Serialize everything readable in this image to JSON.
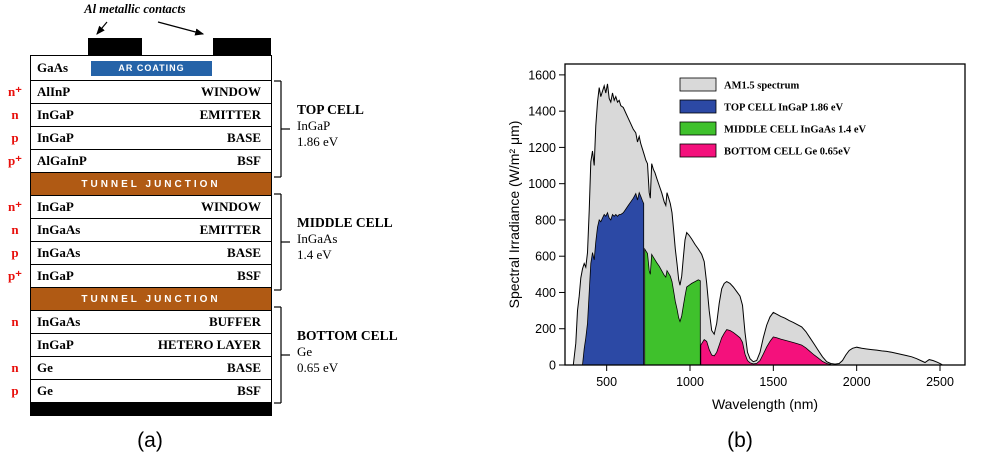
{
  "figure": {
    "caption_a": "(a)",
    "caption_b": "(b)"
  },
  "diagram": {
    "contacts_label": "Al metallic contacts",
    "ar_coating_label": "AR COATING",
    "tunnel_junction_label": "TUNNEL JUNCTION",
    "rows": [
      {
        "material": "GaAs",
        "role": "",
        "doping": ""
      },
      {
        "material": "AlInP",
        "role": "WINDOW",
        "doping": "n⁺"
      },
      {
        "material": "InGaP",
        "role": "EMITTER",
        "doping": "n"
      },
      {
        "material": "InGaP",
        "role": "BASE",
        "doping": "p"
      },
      {
        "material": "AlGaInP",
        "role": "BSF",
        "doping": "p⁺"
      },
      {
        "type": "tunnel"
      },
      {
        "material": "InGaP",
        "role": "WINDOW",
        "doping": "n⁺"
      },
      {
        "material": "InGaAs",
        "role": "EMITTER",
        "doping": "n"
      },
      {
        "material": "InGaAs",
        "role": "BASE",
        "doping": "p"
      },
      {
        "material": "InGaP",
        "role": "BSF",
        "doping": "p⁺"
      },
      {
        "type": "tunnel"
      },
      {
        "material": "InGaAs",
        "role": "BUFFER",
        "doping": "n"
      },
      {
        "material": "InGaP",
        "role": "HETERO LAYER",
        "doping": ""
      },
      {
        "material": "Ge",
        "role": "BASE",
        "doping": "n"
      },
      {
        "material": "Ge",
        "role": "BSF",
        "doping": "p"
      }
    ],
    "cells": [
      {
        "name": "TOP CELL",
        "material": "InGaP",
        "bandgap": "1.86 eV"
      },
      {
        "name": "MIDDLE CELL",
        "material": "InGaAs",
        "bandgap": "1.4 eV"
      },
      {
        "name": "BOTTOM CELL",
        "material": "Ge",
        "bandgap": "0.65 eV"
      }
    ],
    "colors": {
      "tunnel": "#b05a14",
      "ar_coating": "#2563a8",
      "contact": "#000000",
      "doping_text": "#e8100c"
    }
  },
  "chart_data": {
    "type": "area",
    "title": "",
    "xlabel": "Wavelength (nm)",
    "ylabel": "Spectral Irradiance (W/m² μm)",
    "xlim": [
      250,
      2650
    ],
    "ylim": [
      0,
      1660
    ],
    "xticks": [
      500,
      1000,
      1500,
      2000,
      2500
    ],
    "yticks": [
      0,
      200,
      400,
      600,
      800,
      1000,
      1200,
      1400,
      1600
    ],
    "grid": false,
    "legend_position": "top-inside",
    "series": [
      {
        "name": "AM1.5 spectrum",
        "color": "#d9d9d9",
        "points": [
          [
            300,
            0
          ],
          [
            315,
            120
          ],
          [
            325,
            300
          ],
          [
            335,
            380
          ],
          [
            345,
            480
          ],
          [
            355,
            530
          ],
          [
            365,
            560
          ],
          [
            375,
            540
          ],
          [
            385,
            620
          ],
          [
            395,
            850
          ],
          [
            405,
            1120
          ],
          [
            415,
            1180
          ],
          [
            425,
            1100
          ],
          [
            435,
            1320
          ],
          [
            445,
            1450
          ],
          [
            455,
            1530
          ],
          [
            465,
            1480
          ],
          [
            475,
            1510
          ],
          [
            485,
            1540
          ],
          [
            495,
            1500
          ],
          [
            505,
            1550
          ],
          [
            515,
            1470
          ],
          [
            525,
            1450
          ],
          [
            535,
            1500
          ],
          [
            545,
            1460
          ],
          [
            555,
            1480
          ],
          [
            565,
            1450
          ],
          [
            575,
            1460
          ],
          [
            585,
            1430
          ],
          [
            600,
            1420
          ],
          [
            615,
            1390
          ],
          [
            630,
            1360
          ],
          [
            645,
            1330
          ],
          [
            660,
            1300
          ],
          [
            675,
            1280
          ],
          [
            685,
            1230
          ],
          [
            695,
            1260
          ],
          [
            705,
            1220
          ],
          [
            715,
            1190
          ],
          [
            725,
            1160
          ],
          [
            735,
            1130
          ],
          [
            745,
            1110
          ],
          [
            755,
            950
          ],
          [
            762,
            920
          ],
          [
            770,
            1110
          ],
          [
            780,
            1080
          ],
          [
            790,
            1060
          ],
          [
            800,
            1030
          ],
          [
            815,
            990
          ],
          [
            830,
            950
          ],
          [
            845,
            900
          ],
          [
            855,
            880
          ],
          [
            862,
            950
          ],
          [
            872,
            920
          ],
          [
            882,
            890
          ],
          [
            892,
            840
          ],
          [
            902,
            740
          ],
          [
            912,
            640
          ],
          [
            922,
            560
          ],
          [
            932,
            470
          ],
          [
            940,
            440
          ],
          [
            950,
            490
          ],
          [
            960,
            590
          ],
          [
            970,
            690
          ],
          [
            980,
            730
          ],
          [
            995,
            715
          ],
          [
            1010,
            695
          ],
          [
            1030,
            665
          ],
          [
            1050,
            640
          ],
          [
            1070,
            610
          ],
          [
            1085,
            570
          ],
          [
            1100,
            450
          ],
          [
            1115,
            300
          ],
          [
            1130,
            190
          ],
          [
            1145,
            170
          ],
          [
            1160,
            230
          ],
          [
            1175,
            340
          ],
          [
            1190,
            420
          ],
          [
            1205,
            450
          ],
          [
            1220,
            460
          ],
          [
            1240,
            450
          ],
          [
            1260,
            430
          ],
          [
            1280,
            405
          ],
          [
            1300,
            380
          ],
          [
            1315,
            330
          ],
          [
            1330,
            180
          ],
          [
            1345,
            70
          ],
          [
            1360,
            35
          ],
          [
            1380,
            18
          ],
          [
            1400,
            25
          ],
          [
            1420,
            70
          ],
          [
            1440,
            150
          ],
          [
            1460,
            220
          ],
          [
            1480,
            265
          ],
          [
            1500,
            290
          ],
          [
            1520,
            280
          ],
          [
            1545,
            268
          ],
          [
            1570,
            258
          ],
          [
            1595,
            245
          ],
          [
            1620,
            235
          ],
          [
            1645,
            222
          ],
          [
            1670,
            210
          ],
          [
            1695,
            185
          ],
          [
            1720,
            150
          ],
          [
            1745,
            115
          ],
          [
            1770,
            80
          ],
          [
            1795,
            45
          ],
          [
            1820,
            18
          ],
          [
            1845,
            8
          ],
          [
            1870,
            5
          ],
          [
            1895,
            8
          ],
          [
            1915,
            25
          ],
          [
            1935,
            55
          ],
          [
            1955,
            80
          ],
          [
            1975,
            92
          ],
          [
            2000,
            98
          ],
          [
            2030,
            92
          ],
          [
            2060,
            88
          ],
          [
            2090,
            85
          ],
          [
            2120,
            82
          ],
          [
            2150,
            78
          ],
          [
            2180,
            75
          ],
          [
            2210,
            70
          ],
          [
            2240,
            64
          ],
          [
            2270,
            58
          ],
          [
            2300,
            52
          ],
          [
            2330,
            45
          ],
          [
            2360,
            35
          ],
          [
            2390,
            22
          ],
          [
            2410,
            14
          ],
          [
            2435,
            30
          ],
          [
            2460,
            24
          ],
          [
            2485,
            15
          ],
          [
            2505,
            6
          ],
          [
            2515,
            0
          ]
        ]
      },
      {
        "name": "TOP CELL InGaP 1.86 eV",
        "color": "#2c49a5",
        "points": [
          [
            355,
            0
          ],
          [
            365,
            90
          ],
          [
            375,
            150
          ],
          [
            385,
            230
          ],
          [
            395,
            400
          ],
          [
            405,
            560
          ],
          [
            415,
            620
          ],
          [
            425,
            580
          ],
          [
            435,
            680
          ],
          [
            445,
            760
          ],
          [
            455,
            800
          ],
          [
            465,
            790
          ],
          [
            475,
            810
          ],
          [
            485,
            830
          ],
          [
            495,
            820
          ],
          [
            505,
            840
          ],
          [
            515,
            810
          ],
          [
            525,
            800
          ],
          [
            535,
            830
          ],
          [
            545,
            820
          ],
          [
            555,
            830
          ],
          [
            565,
            820
          ],
          [
            575,
            830
          ],
          [
            585,
            830
          ],
          [
            600,
            840
          ],
          [
            615,
            860
          ],
          [
            630,
            880
          ],
          [
            645,
            900
          ],
          [
            660,
            920
          ],
          [
            675,
            945
          ],
          [
            685,
            910
          ],
          [
            695,
            950
          ],
          [
            705,
            930
          ],
          [
            715,
            905
          ],
          [
            722,
            890
          ]
        ]
      },
      {
        "name": "MIDDLE CELL InGaAs 1.4 eV",
        "color": "#3fc12c",
        "points": [
          [
            728,
            640
          ],
          [
            735,
            630
          ],
          [
            745,
            615
          ],
          [
            755,
            520
          ],
          [
            762,
            500
          ],
          [
            770,
            610
          ],
          [
            780,
            595
          ],
          [
            790,
            580
          ],
          [
            800,
            565
          ],
          [
            815,
            545
          ],
          [
            830,
            520
          ],
          [
            845,
            495
          ],
          [
            855,
            485
          ],
          [
            862,
            520
          ],
          [
            872,
            505
          ],
          [
            882,
            490
          ],
          [
            892,
            460
          ],
          [
            902,
            405
          ],
          [
            912,
            350
          ],
          [
            922,
            310
          ],
          [
            932,
            260
          ],
          [
            940,
            240
          ],
          [
            950,
            270
          ],
          [
            960,
            325
          ],
          [
            970,
            380
          ],
          [
            980,
            430
          ],
          [
            995,
            440
          ],
          [
            1010,
            450
          ],
          [
            1030,
            460
          ],
          [
            1050,
            470
          ],
          [
            1062,
            465
          ]
        ]
      },
      {
        "name": "BOTTOM CELL Ge 0.65eV",
        "color": "#f4117c",
        "points": [
          [
            1065,
            110
          ],
          [
            1085,
            140
          ],
          [
            1100,
            130
          ],
          [
            1115,
            85
          ],
          [
            1130,
            55
          ],
          [
            1145,
            50
          ],
          [
            1160,
            70
          ],
          [
            1175,
            110
          ],
          [
            1190,
            150
          ],
          [
            1205,
            175
          ],
          [
            1220,
            195
          ],
          [
            1240,
            190
          ],
          [
            1260,
            180
          ],
          [
            1280,
            165
          ],
          [
            1300,
            150
          ],
          [
            1315,
            125
          ],
          [
            1330,
            60
          ],
          [
            1345,
            25
          ],
          [
            1360,
            12
          ],
          [
            1380,
            6
          ],
          [
            1400,
            9
          ],
          [
            1420,
            25
          ],
          [
            1440,
            60
          ],
          [
            1460,
            100
          ],
          [
            1480,
            130
          ],
          [
            1500,
            155
          ],
          [
            1520,
            150
          ],
          [
            1545,
            143
          ],
          [
            1570,
            137
          ],
          [
            1595,
            130
          ],
          [
            1620,
            124
          ],
          [
            1645,
            117
          ],
          [
            1670,
            110
          ],
          [
            1695,
            95
          ],
          [
            1720,
            75
          ],
          [
            1745,
            55
          ],
          [
            1770,
            38
          ],
          [
            1795,
            20
          ],
          [
            1820,
            8
          ],
          [
            1845,
            3
          ]
        ]
      }
    ]
  }
}
